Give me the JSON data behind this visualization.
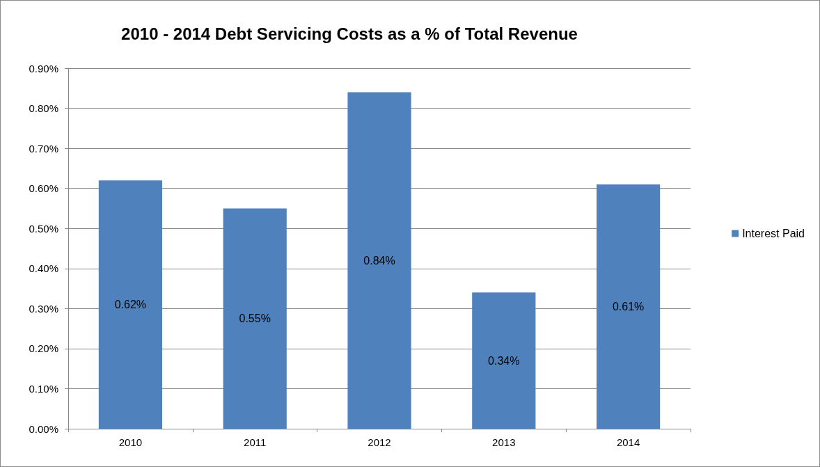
{
  "chart_data": {
    "type": "bar",
    "title": "2010 - 2014 Debt Servicing Costs as a % of Total Revenue",
    "categories": [
      "2010",
      "2011",
      "2012",
      "2013",
      "2014"
    ],
    "series": [
      {
        "name": "Interest Paid",
        "color": "#4f81bd",
        "values": [
          0.62,
          0.55,
          0.84,
          0.34,
          0.61
        ],
        "value_labels": [
          "0.62%",
          "0.55%",
          "0.84%",
          "0.34%",
          "0.61%"
        ]
      }
    ],
    "ylim": [
      0,
      0.9
    ],
    "yticks": [
      {
        "value": 0,
        "label": "0.00%"
      },
      {
        "value": 0.1,
        "label": "0.10%"
      },
      {
        "value": 0.2,
        "label": "0.20%"
      },
      {
        "value": 0.3,
        "label": "0.30%"
      },
      {
        "value": 0.4,
        "label": "0.40%"
      },
      {
        "value": 0.5,
        "label": "0.50%"
      },
      {
        "value": 0.6,
        "label": "0.60%"
      },
      {
        "value": 0.7,
        "label": "0.70%"
      },
      {
        "value": 0.8,
        "label": "0.80%"
      },
      {
        "value": 0.9,
        "label": "0.90%"
      }
    ],
    "grid": "y",
    "legend": "right"
  }
}
